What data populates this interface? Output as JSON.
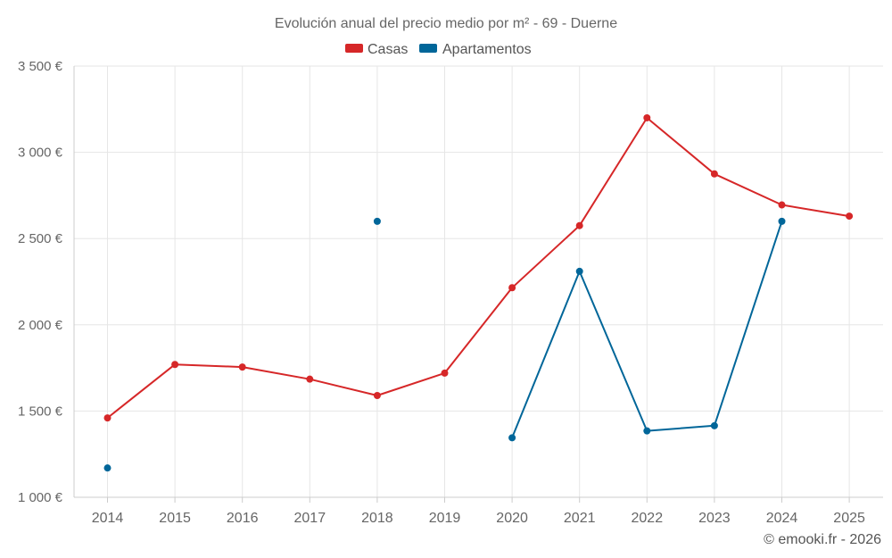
{
  "chart_data": {
    "type": "line",
    "title": "Evolución anual del precio medio por m² - 69 - Duerne",
    "credit": "© emooki.fr - 2026",
    "categories": [
      "2014",
      "2015",
      "2016",
      "2017",
      "2018",
      "2019",
      "2020",
      "2021",
      "2022",
      "2023",
      "2024",
      "2025"
    ],
    "y_ticks": [
      "1 000 €",
      "1 500 €",
      "2 000 €",
      "2 500 €",
      "3 000 €",
      "3 500 €"
    ],
    "ylim": [
      1000,
      3500
    ],
    "series": [
      {
        "name": "Casas",
        "color": "#d62728",
        "values": [
          1460,
          1770,
          1755,
          1685,
          1590,
          1720,
          2215,
          2575,
          3200,
          2875,
          2695,
          2630
        ]
      },
      {
        "name": "Apartamentos",
        "color": "#006699",
        "values": [
          1170,
          null,
          null,
          null,
          2600,
          null,
          1345,
          2310,
          1385,
          1415,
          2600,
          null
        ]
      }
    ],
    "legend": "top-center",
    "grid": true
  }
}
